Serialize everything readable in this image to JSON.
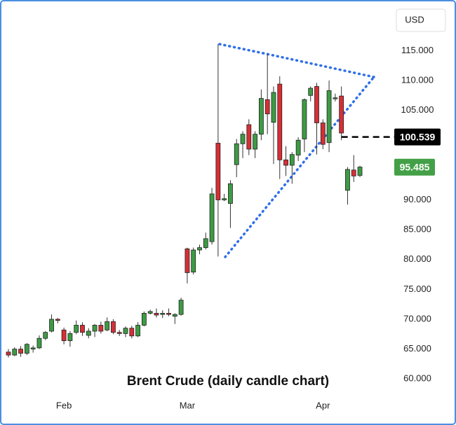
{
  "chart_data": {
    "type": "candlestick",
    "title": "Brent Crude (daily candle chart)",
    "currency": "USD",
    "categories": [
      null,
      null,
      null,
      null,
      null,
      null,
      null,
      null,
      null,
      "Feb",
      null,
      null,
      null,
      null,
      null,
      null,
      null,
      null,
      null,
      null,
      null,
      null,
      null,
      null,
      null,
      null,
      null,
      null,
      null,
      "Mar",
      null,
      null,
      null,
      null,
      null,
      null,
      null,
      null,
      null,
      null,
      null,
      null,
      null,
      null,
      null,
      null,
      null,
      null,
      null,
      null,
      null,
      "Apr",
      null,
      null,
      null,
      null,
      null,
      null
    ],
    "open": [
      64.5,
      64.0,
      65.0,
      64.3,
      65.0,
      65.2,
      66.8,
      68.0,
      70.0,
      68.2,
      66.4,
      67.8,
      69.0,
      67.3,
      68.0,
      69.0,
      68.2,
      69.6,
      67.8,
      67.6,
      68.5,
      67.2,
      69.0,
      71.0,
      71.0,
      70.8,
      71.0,
      70.5,
      70.8,
      81.8,
      77.9,
      81.6,
      82.0,
      83.0,
      99.5,
      90.0,
      89.4,
      95.9,
      99.4,
      102.6,
      98.5,
      101.0,
      106.8,
      103.0,
      109.4,
      96.7,
      95.8,
      97.5,
      100.2,
      107.5,
      109.0,
      102.9,
      99.6,
      107.0,
      107.4,
      91.6,
      95.0,
      94.1
    ],
    "high": [
      65.0,
      65.3,
      65.5,
      66.0,
      65.6,
      67.3,
      68.0,
      70.8,
      70.2,
      68.6,
      68.0,
      69.8,
      69.5,
      68.5,
      69.2,
      69.6,
      70.3,
      70.0,
      68.2,
      68.8,
      68.9,
      69.5,
      71.3,
      71.6,
      71.8,
      71.5,
      71.8,
      71.0,
      73.6,
      82.0,
      82.0,
      82.5,
      84.5,
      92.0,
      116.1,
      91.0,
      93.3,
      100.2,
      101.5,
      103.5,
      101.5,
      108.5,
      114.4,
      109.0,
      110.7,
      99.0,
      98.0,
      100.5,
      107.0,
      109.0,
      109.6,
      103.5,
      110.0,
      107.8,
      109.0,
      95.5,
      97.5,
      95.7
    ],
    "low": [
      63.6,
      63.8,
      63.7,
      64.0,
      64.4,
      65.0,
      66.5,
      67.8,
      69.3,
      65.8,
      65.4,
      67.5,
      67.2,
      66.8,
      67.0,
      67.6,
      68.0,
      67.5,
      67.2,
      67.0,
      66.8,
      67.0,
      68.8,
      70.8,
      70.3,
      70.2,
      70.5,
      69.2,
      70.6,
      76.0,
      77.5,
      80.9,
      81.7,
      82.5,
      80.5,
      89.8,
      85.3,
      93.8,
      97.0,
      97.5,
      97.0,
      100.0,
      101.0,
      96.0,
      93.5,
      94.0,
      92.7,
      96.5,
      98.0,
      106.5,
      97.6,
      98.5,
      98.0,
      106.5,
      100.0,
      89.2,
      93.0,
      93.8
    ],
    "close": [
      64.0,
      65.0,
      64.3,
      65.8,
      65.2,
      66.8,
      67.8,
      70.0,
      69.8,
      66.4,
      67.6,
      69.0,
      67.8,
      68.0,
      69.0,
      68.0,
      69.6,
      67.8,
      67.6,
      68.5,
      67.2,
      69.0,
      71.0,
      71.3,
      70.7,
      71.0,
      70.8,
      70.8,
      73.2,
      77.8,
      81.6,
      82.0,
      83.5,
      91.0,
      90.0,
      90.2,
      92.7,
      99.4,
      101.0,
      98.5,
      101.0,
      107.0,
      104.4,
      108.0,
      96.7,
      95.8,
      97.6,
      100.0,
      106.8,
      108.7,
      102.9,
      99.3,
      108.3,
      107.1,
      101.2,
      95.1,
      94.0,
      95.5
    ],
    "up_color": "#3d9b44",
    "down_color": "#d62f35",
    "ylim": [
      53.1,
      122.9
    ],
    "yticks": [
      {
        "value": 60,
        "label": "60.000"
      },
      {
        "value": 65,
        "label": "65.000"
      },
      {
        "value": 70,
        "label": "70.000"
      },
      {
        "value": 75,
        "label": "75.000"
      },
      {
        "value": 80,
        "label": "80.000"
      },
      {
        "value": 85,
        "label": "85.000"
      },
      {
        "value": 90,
        "label": "90.000"
      },
      {
        "value": 95,
        "label": "95.000"
      },
      {
        "value": 100,
        "label": "100.000"
      },
      {
        "value": 105,
        "label": "105.000"
      },
      {
        "value": 110,
        "label": "110.000"
      },
      {
        "value": 115,
        "label": "115.000"
      }
    ],
    "price_lines": [
      {
        "value": 100.539,
        "color": "#000000",
        "dashed": true
      },
      {
        "value": 95.485,
        "color": "#43a047",
        "dashed": false
      }
    ]
  }
}
